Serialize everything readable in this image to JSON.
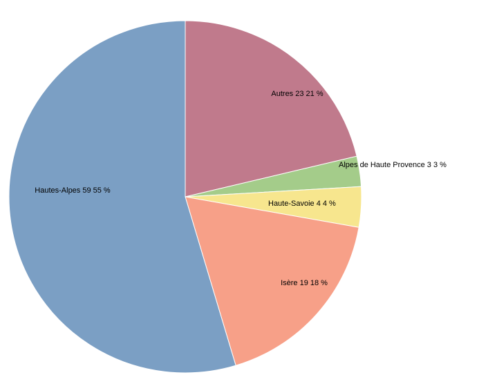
{
  "chart_data": {
    "type": "pie",
    "start_angle_deg": 0,
    "direction": "clockwise",
    "slices": [
      {
        "label": "Autres",
        "value": 23,
        "percent": 21,
        "text": "Autres 23 21 %",
        "color": "#C07A8C"
      },
      {
        "label": "Alpes de Haute Provence",
        "value": 3,
        "percent": 3,
        "text": "Alpes de Haute Provence 3 3 %",
        "color": "#A4CC8A"
      },
      {
        "label": "Haute-Savoie",
        "value": 4,
        "percent": 4,
        "text": "Haute-Savoie 4 4 %",
        "color": "#F7E68E"
      },
      {
        "label": "Isère",
        "value": 19,
        "percent": 18,
        "text": "Isère 19 18 %",
        "color": "#F7A088"
      },
      {
        "label": "Hautes-Alpes",
        "value": 59,
        "percent": 55,
        "text": "Hautes-Alpes 59 55 %",
        "color": "#7B9FC4"
      }
    ]
  }
}
